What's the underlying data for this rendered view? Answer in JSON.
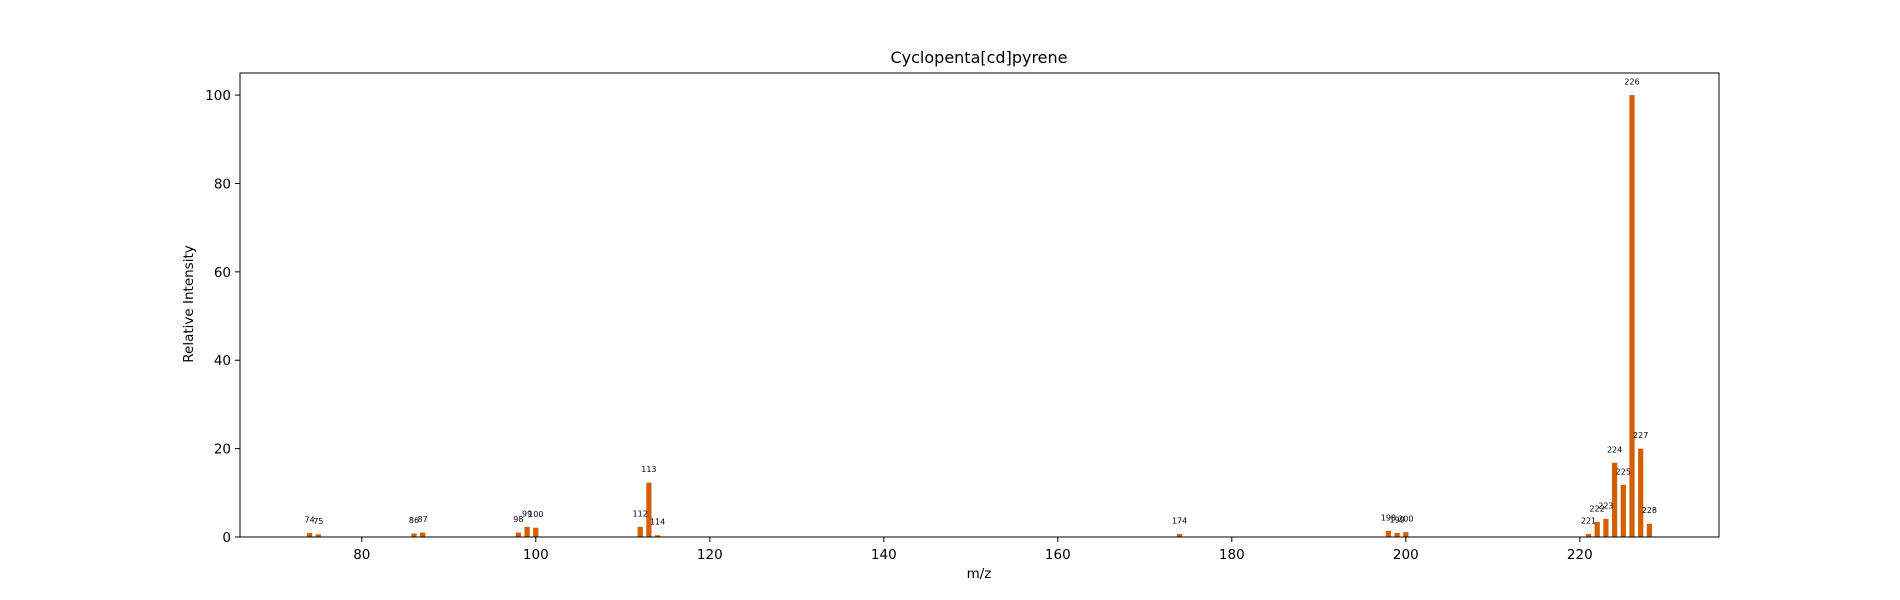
{
  "chart_data": {
    "type": "bar",
    "title": "Cyclopenta[cd]pyrene",
    "xlabel": "m/z",
    "ylabel": "Relative Intensity",
    "xlim": [
      66,
      236
    ],
    "ylim": [
      0,
      105
    ],
    "xticks": [
      80,
      100,
      120,
      140,
      160,
      180,
      200,
      220
    ],
    "yticks": [
      0,
      20,
      40,
      60,
      80,
      100
    ],
    "grid": false,
    "bar_color": "#d55e00",
    "series": [
      {
        "x": [
          74,
          75,
          86,
          87,
          98,
          99,
          100,
          112,
          113,
          114,
          174,
          198,
          199,
          200,
          221,
          222,
          223,
          224,
          225,
          226,
          227,
          228
        ],
        "values": [
          0.9,
          0.6,
          0.8,
          1.0,
          1.0,
          2.3,
          2.1,
          2.3,
          12.3,
          0.4,
          0.7,
          1.4,
          0.9,
          1.1,
          0.7,
          3.4,
          4.1,
          16.8,
          11.8,
          100,
          20.0,
          3.0
        ],
        "labels": [
          "74",
          "75",
          "86",
          "87",
          "98",
          "99",
          "100",
          "112",
          "113",
          "114",
          "174",
          "198",
          "199",
          "200",
          "221",
          "222",
          "223",
          "224",
          "225",
          "226",
          "227",
          "228"
        ]
      }
    ]
  }
}
